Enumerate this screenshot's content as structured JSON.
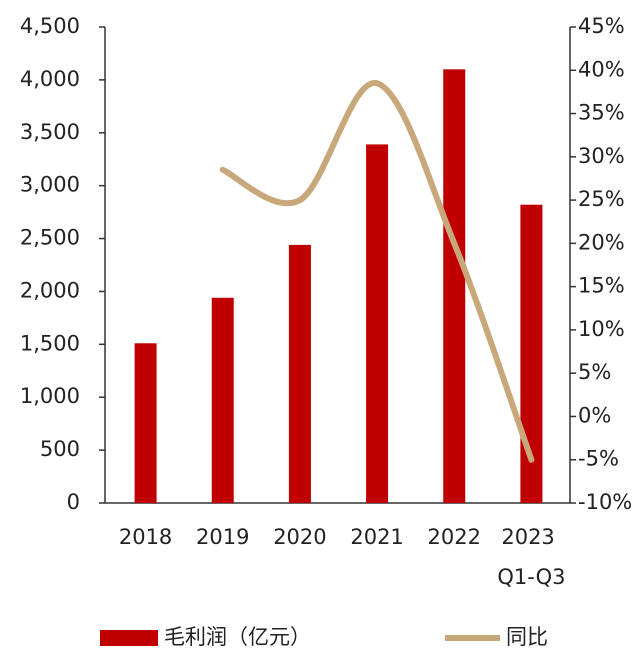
{
  "chart_data": {
    "type": "bar-line",
    "categories": [
      "2018",
      "2019",
      "2020",
      "2021",
      "2022",
      "2023 Q1-Q3"
    ],
    "series": [
      {
        "name": "毛利润（亿元）",
        "type": "bar",
        "color": "#c00000",
        "values": [
          1510,
          1940,
          2440,
          3390,
          4100,
          2820
        ]
      },
      {
        "name": "同比",
        "type": "line",
        "axis": "y2",
        "color": "#c8a87a",
        "values": [
          null,
          28.5,
          25,
          38.5,
          20,
          -5
        ]
      }
    ],
    "ylim": [
      0,
      4500
    ],
    "yticks": [
      0,
      500,
      {
        "value": 1000,
        "label": "1,000"
      },
      {
        "value": 1500,
        "label": "1,500"
      },
      {
        "value": 2000,
        "label": "2,000"
      },
      {
        "value": 2500,
        "label": "2,500"
      },
      {
        "value": 3000,
        "label": "3,000"
      },
      {
        "value": 3500,
        "label": "3,500"
      },
      {
        "value": 4000,
        "label": "4,000"
      },
      {
        "value": 4500,
        "label": "4,500"
      }
    ],
    "y2lim": [
      -10,
      45
    ],
    "y2ticks": [
      {
        "value": -10,
        "label": "-10%"
      },
      {
        "value": -5,
        "label": "-5%"
      },
      {
        "value": 0,
        "label": "0%"
      },
      {
        "value": 5,
        "label": "5%"
      },
      {
        "value": 10,
        "label": "10%"
      },
      {
        "value": 15,
        "label": "15%"
      },
      {
        "value": 20,
        "label": "20%"
      },
      {
        "value": 25,
        "label": "25%"
      },
      {
        "value": 30,
        "label": "30%"
      },
      {
        "value": 35,
        "label": "35%"
      },
      {
        "value": 40,
        "label": "40%"
      },
      {
        "value": 45,
        "label": "45%"
      }
    ]
  }
}
